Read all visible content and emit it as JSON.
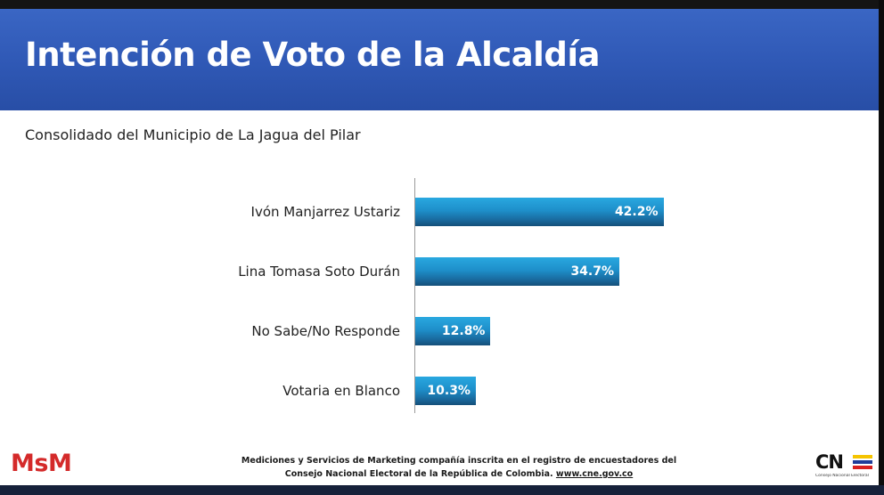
{
  "header": {
    "title": "Intención de Voto de la Alcaldía"
  },
  "subtitle": "Consolidado del Municipio de La Jagua del Pilar",
  "chart_data": {
    "type": "bar",
    "orientation": "horizontal",
    "categories": [
      "Ivón Manjarrez Ustariz",
      "Lina Tomasa Soto Durán",
      "No Sabe/No Responde",
      "Votaria en Blanco"
    ],
    "values": [
      42.2,
      34.7,
      12.8,
      10.3
    ],
    "value_labels": [
      "42.2%",
      "34.7%",
      "12.8%",
      "10.3%"
    ],
    "xlim": [
      0,
      50
    ],
    "grid": false,
    "legend": "none",
    "bar_color": "#1e8fca"
  },
  "footer": {
    "logo_text": "MsM",
    "line1": "Mediciones y Servicios de Marketing compañía inscrita en el registro de encuestadores del",
    "line2": "Consejo Nacional Electoral de la República de Colombia.",
    "url": "www.cne.gov.co",
    "cne_letters": "CN",
    "cne_sub": "Consejo Nacional Electoral",
    "cne_stripe_colors": [
      "#f5c400",
      "#1f3c99",
      "#d82020"
    ]
  }
}
